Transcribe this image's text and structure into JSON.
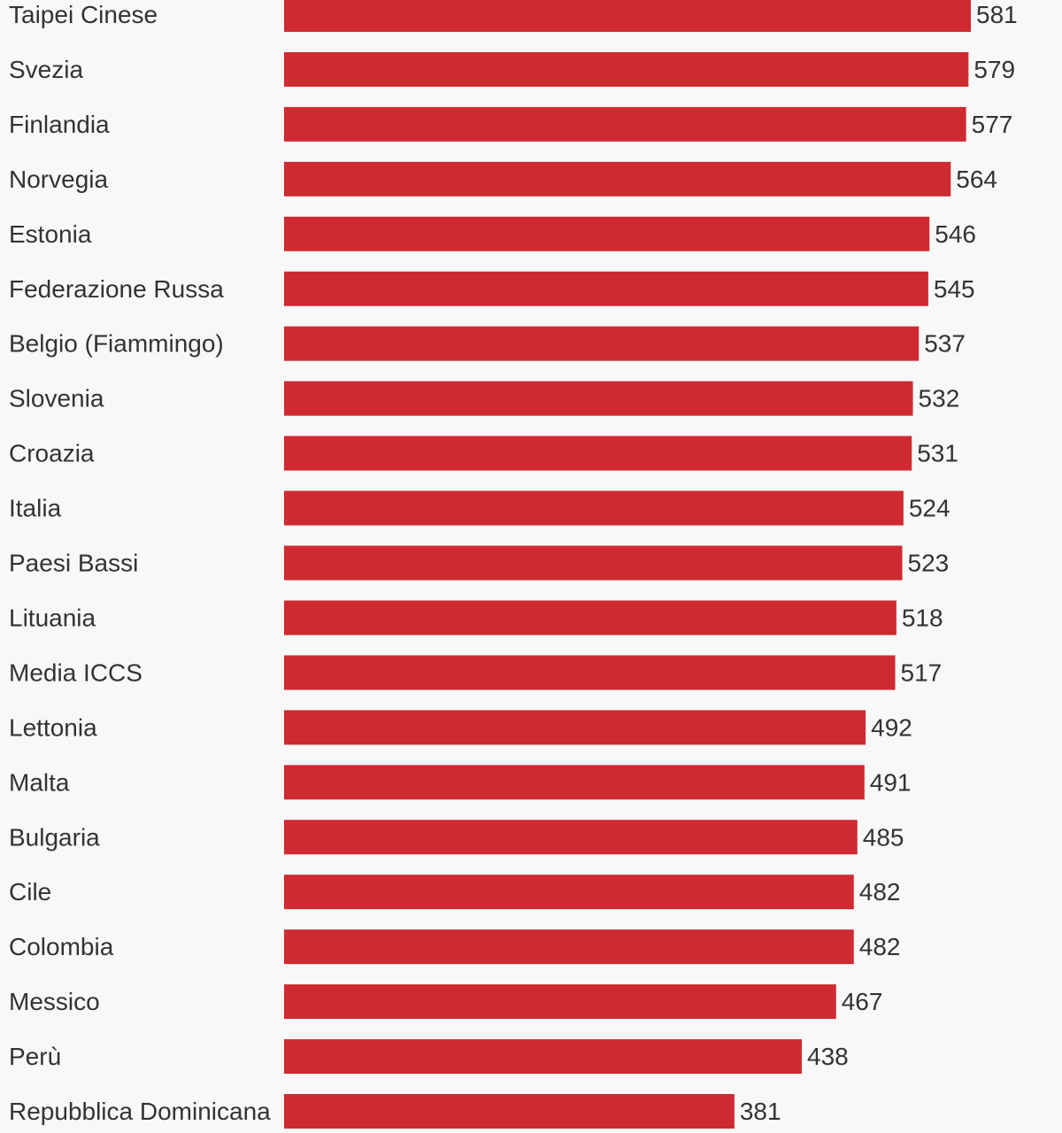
{
  "colors": {
    "background": "#f8f8f8",
    "bar": "#cf2a31",
    "text": "#333333"
  },
  "chart_data": {
    "type": "bar",
    "orientation": "horizontal",
    "title": "",
    "xlabel": "",
    "ylabel": "",
    "grid": false,
    "legend": "none",
    "xlim": [
      0,
      600
    ],
    "categories": [
      "Taipei Cinese",
      "Svezia",
      "Finlandia",
      "Norvegia",
      "Estonia",
      "Federazione Russa",
      "Belgio (Fiammingo)",
      "Slovenia",
      "Croazia",
      "Italia",
      "Paesi Bassi",
      "Lituania",
      "Media ICCS",
      "Lettonia",
      "Malta",
      "Bulgaria",
      "Cile",
      "Colombia",
      "Messico",
      "Perù",
      "Repubblica Dominicana"
    ],
    "values": [
      581,
      579,
      577,
      564,
      546,
      545,
      537,
      532,
      531,
      524,
      523,
      518,
      517,
      492,
      491,
      485,
      482,
      482,
      467,
      438,
      381
    ]
  }
}
